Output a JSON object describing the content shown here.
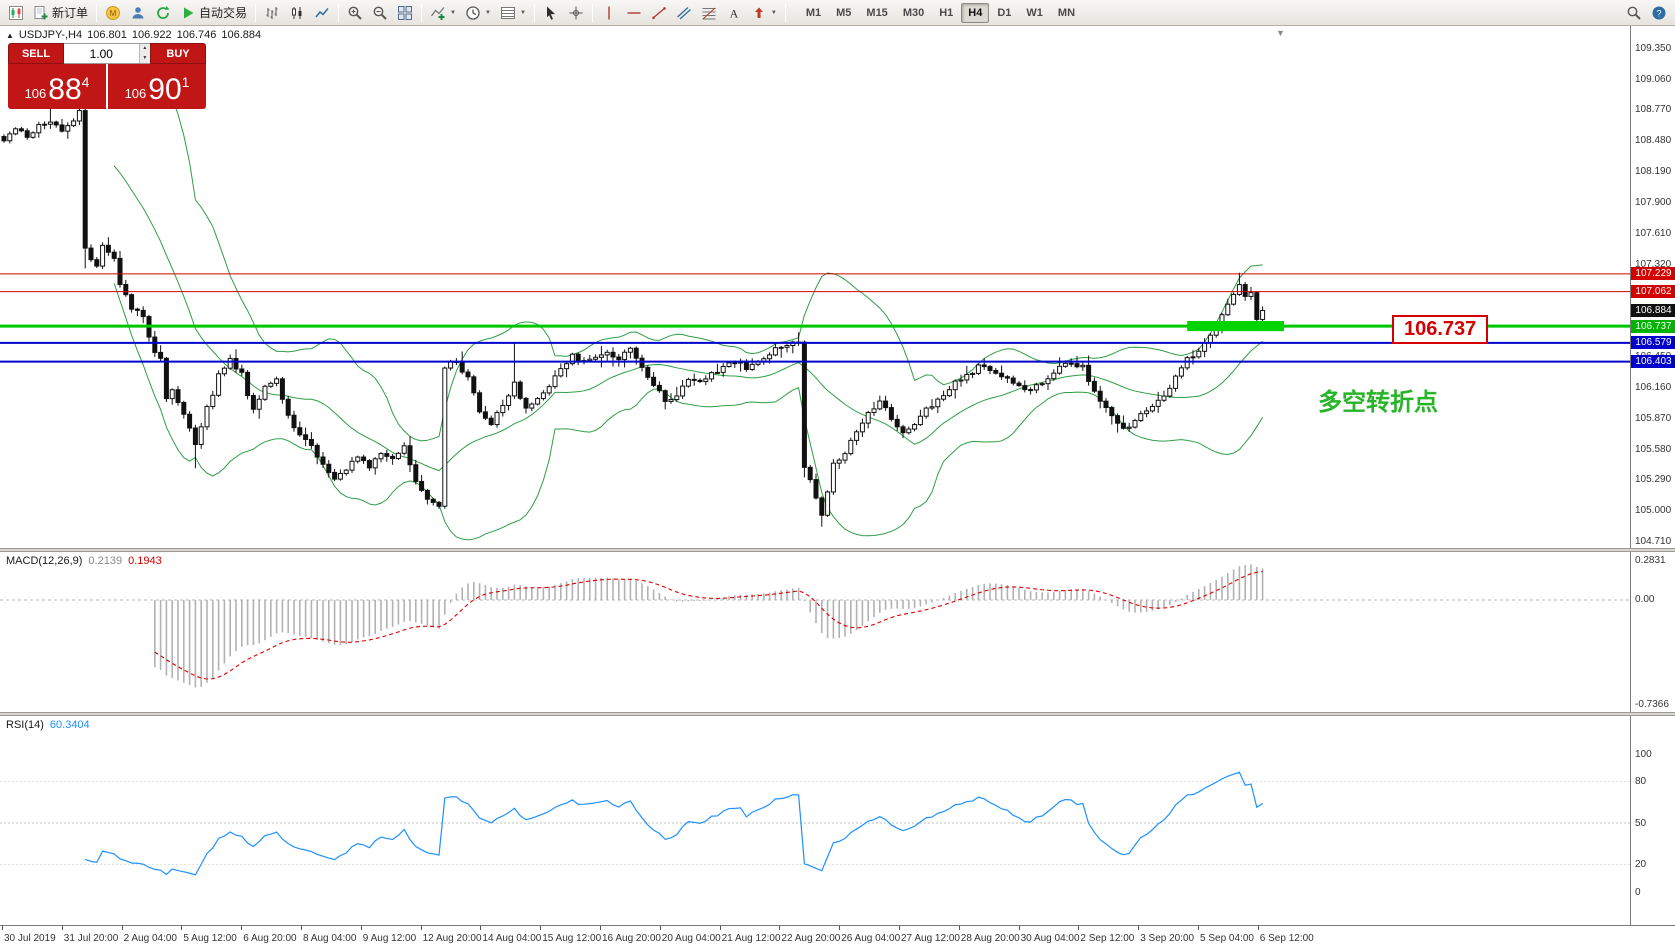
{
  "toolbar": {
    "buttons": [
      {
        "icon": "new-chart-icon"
      },
      {
        "icon": "new-order-icon",
        "label": "新订单"
      },
      {
        "sep": true
      },
      {
        "icon": "mql5-icon"
      },
      {
        "icon": "community-icon"
      },
      {
        "icon": "refresh-icon"
      },
      {
        "icon": "autotrading-icon",
        "label": "自动交易"
      },
      {
        "sep": true
      },
      {
        "icon": "bar-chart-icon"
      },
      {
        "icon": "candle-chart-icon"
      },
      {
        "icon": "line-chart-icon"
      },
      {
        "sep": true
      },
      {
        "icon": "zoom-in-icon"
      },
      {
        "icon": "zoom-out-icon"
      },
      {
        "icon": "tile-windows-icon"
      },
      {
        "sep": true
      },
      {
        "icon": "indicators-icon",
        "dropdown": true
      },
      {
        "icon": "periods-icon",
        "dropdown": true
      },
      {
        "icon": "templates-icon",
        "dropdown": true
      },
      {
        "sep": true
      },
      {
        "icon": "cursor-icon"
      },
      {
        "icon": "crosshair-icon"
      },
      {
        "sep": true
      },
      {
        "icon": "vline-icon"
      },
      {
        "icon": "hline-icon"
      },
      {
        "icon": "trendline-icon"
      },
      {
        "icon": "channel-icon"
      },
      {
        "icon": "fibo-icon"
      },
      {
        "icon": "text-icon"
      },
      {
        "icon": "arrows-icon",
        "dropdown": true
      },
      {
        "sep": true
      }
    ],
    "right_buttons": [
      {
        "icon": "search-icon"
      },
      {
        "icon": "help-icon"
      }
    ],
    "timeframes": [
      "M1",
      "M5",
      "M15",
      "M30",
      "H1",
      "H4",
      "D1",
      "W1",
      "MN"
    ],
    "active_timeframe": "H4"
  },
  "chart": {
    "symbol_info": {
      "symbol": "USDJPY-,H4",
      "open": "106.801",
      "high": "106.922",
      "low": "106.746",
      "close": "106.884"
    },
    "trade_panel": {
      "sell_label": "SELL",
      "buy_label": "BUY",
      "volume": "1.00",
      "sell_price": {
        "base": "106",
        "big": "88",
        "sup": "4"
      },
      "buy_price": {
        "base": "106",
        "big": "90",
        "sup": "1"
      }
    },
    "price_scale_ticks": [
      "109.350",
      "109.060",
      "108.770",
      "108.480",
      "108.190",
      "107.900",
      "107.610",
      "107.320",
      "107.030",
      "106.740",
      "106.450",
      "106.160",
      "105.870",
      "105.580",
      "105.290",
      "105.000",
      "104.710"
    ],
    "price_tags": [
      {
        "text": "107.229",
        "price": 107.229,
        "color": "#d40000"
      },
      {
        "text": "107.062",
        "price": 107.062,
        "color": "#d40000"
      },
      {
        "text": "106.884",
        "price": 106.884,
        "color": "#111111"
      },
      {
        "text": "106.737",
        "price": 106.737,
        "color": "#00b300"
      },
      {
        "text": "106.579",
        "price": 106.579,
        "color": "#0000cc"
      },
      {
        "text": "106.403",
        "price": 106.403,
        "color": "#0000cc"
      }
    ],
    "hlines": [
      {
        "price": 107.229,
        "color": "#d40000",
        "width": 1
      },
      {
        "price": 107.062,
        "color": "#d40000",
        "width": 1
      },
      {
        "price": 106.737,
        "color": "#00c800",
        "width": 3
      },
      {
        "price": 106.579,
        "color": "#0000cc",
        "width": 2
      },
      {
        "price": 106.403,
        "color": "#0000cc",
        "width": 2
      }
    ],
    "highlight_rect": {
      "from_bar": 204,
      "to_x": 1284,
      "price_top": 106.785,
      "price_bottom": 106.69,
      "color": "#00d400"
    },
    "callout_label": "106.737",
    "annotation": "多空转折点"
  },
  "chart_data": {
    "type": "candlestick",
    "symbol": "USDJPY",
    "timeframe": "H4",
    "bars": 218,
    "ylim": [
      104.65,
      109.56
    ],
    "price_path": [
      [
        0,
        108.5
      ],
      [
        2,
        108.58
      ],
      [
        4,
        108.52
      ],
      [
        6,
        108.62
      ],
      [
        8,
        108.66
      ],
      [
        10,
        108.58
      ],
      [
        12,
        108.68
      ],
      [
        13,
        108.74
      ],
      [
        14,
        107.48
      ],
      [
        15,
        107.35
      ],
      [
        16,
        107.3
      ],
      [
        17,
        107.52
      ],
      [
        18,
        107.45
      ],
      [
        19,
        107.38
      ],
      [
        20,
        107.12
      ],
      [
        21,
        107.02
      ],
      [
        22,
        106.92
      ],
      [
        23,
        106.88
      ],
      [
        24,
        106.82
      ],
      [
        25,
        106.62
      ],
      [
        26,
        106.5
      ],
      [
        27,
        106.42
      ],
      [
        28,
        106.05
      ],
      [
        29,
        106.12
      ],
      [
        30,
        106.02
      ],
      [
        31,
        105.92
      ],
      [
        32,
        105.8
      ],
      [
        33,
        105.62
      ],
      [
        34,
        105.8
      ],
      [
        35,
        105.98
      ],
      [
        36,
        106.1
      ],
      [
        37,
        106.28
      ],
      [
        38,
        106.35
      ],
      [
        39,
        106.42
      ],
      [
        40,
        106.35
      ],
      [
        41,
        106.28
      ],
      [
        42,
        106.1
      ],
      [
        43,
        105.95
      ],
      [
        44,
        106.05
      ],
      [
        45,
        106.15
      ],
      [
        46,
        106.22
      ],
      [
        47,
        106.25
      ],
      [
        48,
        106.05
      ],
      [
        49,
        105.92
      ],
      [
        50,
        105.8
      ],
      [
        51,
        105.72
      ],
      [
        52,
        105.68
      ],
      [
        53,
        105.62
      ],
      [
        54,
        105.52
      ],
      [
        55,
        105.45
      ],
      [
        56,
        105.38
      ],
      [
        57,
        105.3
      ],
      [
        58,
        105.35
      ],
      [
        59,
        105.38
      ],
      [
        60,
        105.45
      ],
      [
        61,
        105.52
      ],
      [
        62,
        105.45
      ],
      [
        63,
        105.4
      ],
      [
        64,
        105.48
      ],
      [
        65,
        105.55
      ],
      [
        66,
        105.52
      ],
      [
        67,
        105.48
      ],
      [
        68,
        105.55
      ],
      [
        69,
        105.6
      ],
      [
        70,
        105.42
      ],
      [
        71,
        105.3
      ],
      [
        72,
        105.18
      ],
      [
        73,
        105.1
      ],
      [
        74,
        105.08
      ],
      [
        75,
        105.05
      ],
      [
        76,
        106.32
      ],
      [
        77,
        106.38
      ],
      [
        78,
        106.42
      ],
      [
        79,
        106.32
      ],
      [
        80,
        106.25
      ],
      [
        81,
        106.1
      ],
      [
        82,
        105.95
      ],
      [
        83,
        105.85
      ],
      [
        84,
        105.8
      ],
      [
        85,
        105.9
      ],
      [
        86,
        106.0
      ],
      [
        87,
        106.1
      ],
      [
        88,
        106.22
      ],
      [
        89,
        106.05
      ],
      [
        90,
        105.95
      ],
      [
        91,
        106.0
      ],
      [
        92,
        106.05
      ],
      [
        93,
        106.1
      ],
      [
        94,
        106.15
      ],
      [
        95,
        106.25
      ],
      [
        96,
        106.35
      ],
      [
        97,
        106.4
      ],
      [
        98,
        106.45
      ],
      [
        100,
        106.4
      ],
      [
        102,
        106.45
      ],
      [
        104,
        106.5
      ],
      [
        106,
        106.42
      ],
      [
        108,
        106.52
      ],
      [
        110,
        106.35
      ],
      [
        112,
        106.2
      ],
      [
        114,
        106.02
      ],
      [
        116,
        106.1
      ],
      [
        118,
        106.25
      ],
      [
        120,
        106.2
      ],
      [
        122,
        106.3
      ],
      [
        124,
        106.35
      ],
      [
        126,
        106.4
      ],
      [
        128,
        106.35
      ],
      [
        130,
        106.42
      ],
      [
        132,
        106.48
      ],
      [
        134,
        106.55
      ],
      [
        136,
        106.6
      ],
      [
        137,
        106.58
      ],
      [
        138,
        105.42
      ],
      [
        139,
        105.3
      ],
      [
        140,
        105.12
      ],
      [
        141,
        104.98
      ],
      [
        142,
        105.2
      ],
      [
        143,
        105.45
      ],
      [
        144,
        105.5
      ],
      [
        145,
        105.55
      ],
      [
        146,
        105.65
      ],
      [
        147,
        105.75
      ],
      [
        148,
        105.82
      ],
      [
        149,
        105.9
      ],
      [
        150,
        105.98
      ],
      [
        151,
        106.02
      ],
      [
        152,
        105.95
      ],
      [
        153,
        105.85
      ],
      [
        154,
        105.78
      ],
      [
        155,
        105.72
      ],
      [
        156,
        105.78
      ],
      [
        157,
        105.82
      ],
      [
        158,
        105.9
      ],
      [
        159,
        105.95
      ],
      [
        160,
        106.0
      ],
      [
        162,
        106.1
      ],
      [
        164,
        106.2
      ],
      [
        166,
        106.28
      ],
      [
        168,
        106.35
      ],
      [
        170,
        106.32
      ],
      [
        172,
        106.25
      ],
      [
        174,
        106.2
      ],
      [
        176,
        106.12
      ],
      [
        178,
        106.18
      ],
      [
        180,
        106.25
      ],
      [
        182,
        106.35
      ],
      [
        184,
        106.4
      ],
      [
        186,
        106.35
      ],
      [
        188,
        106.12
      ],
      [
        190,
        105.95
      ],
      [
        192,
        105.82
      ],
      [
        194,
        105.78
      ],
      [
        196,
        105.9
      ],
      [
        198,
        106.0
      ],
      [
        200,
        106.08
      ],
      [
        202,
        106.25
      ],
      [
        204,
        106.42
      ],
      [
        206,
        106.52
      ],
      [
        208,
        106.65
      ],
      [
        210,
        106.85
      ],
      [
        212,
        107.05
      ],
      [
        213,
        107.12
      ],
      [
        214,
        107.02
      ],
      [
        215,
        107.06
      ],
      [
        216,
        106.8
      ],
      [
        217,
        106.884
      ]
    ],
    "wick_overrides": {
      "8": {
        "high": 108.85
      },
      "14": {
        "low": 107.28
      },
      "33": {
        "low": 105.4
      },
      "76": {
        "low": 105.02
      },
      "88": {
        "high": 106.58
      },
      "141": {
        "low": 104.85
      },
      "213": {
        "high": 107.24
      },
      "217": {
        "high": 106.922,
        "low": 106.746
      }
    },
    "overlays": {
      "bollinger": {
        "period": 20,
        "deviation": 2,
        "color": "#2f9e44"
      }
    },
    "horizontal_levels": [
      107.229,
      107.062,
      106.737,
      106.579,
      106.403
    ]
  },
  "macd_panel": {
    "label": "MACD(12,26,9)",
    "value_main": "0.2139",
    "value_signal": "0.1943",
    "ticks": [
      "0.2831",
      "0.00",
      "-0.7366"
    ],
    "histogram_color": "#b2b2b2",
    "signal_color": "#e00000"
  },
  "rsi_panel": {
    "label": "RSI(14)",
    "value": "60.3404",
    "ticks": [
      100,
      80,
      50,
      20,
      0
    ],
    "levels": [
      80,
      50,
      20
    ],
    "line_color": "#1E90FF"
  },
  "time_axis": [
    "30 Jul 2019",
    "31 Jul 20:00",
    "2 Aug 04:00",
    "5 Aug 12:00",
    "6 Aug 20:00",
    "8 Aug 04:00",
    "9 Aug 12:00",
    "12 Aug 20:00",
    "14 Aug 04:00",
    "15 Aug 12:00",
    "16 Aug 20:00",
    "20 Aug 04:00",
    "21 Aug 12:00",
    "22 Aug 20:00",
    "26 Aug 04:00",
    "27 Aug 12:00",
    "28 Aug 20:00",
    "30 Aug 04:00",
    "2 Sep 12:00",
    "3 Sep 20:00",
    "5 Sep 04:00",
    "6 Sep 12:00"
  ]
}
